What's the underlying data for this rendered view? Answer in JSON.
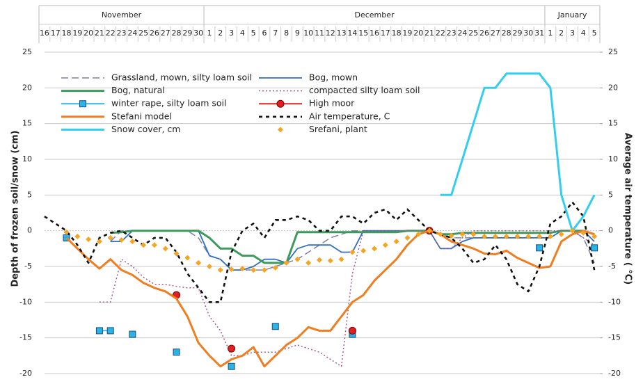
{
  "chart_data": {
    "type": "line",
    "months": [
      "November",
      "December",
      "January"
    ],
    "categories": [
      16,
      17,
      18,
      19,
      20,
      21,
      22,
      23,
      24,
      25,
      26,
      27,
      28,
      29,
      30,
      1,
      2,
      3,
      4,
      5,
      6,
      7,
      8,
      9,
      10,
      11,
      12,
      13,
      14,
      15,
      16,
      17,
      18,
      19,
      20,
      21,
      22,
      23,
      24,
      25,
      26,
      27,
      28,
      29,
      30,
      31,
      1,
      2,
      3,
      4,
      5
    ],
    "y_label": "Depth of frozen soil/snow (cm)",
    "y2_label": "Average air temperature ( °C)",
    "ylim": [
      -20,
      25
    ],
    "yticks": [
      25,
      20,
      15,
      10,
      5,
      0,
      -5,
      -10,
      -15,
      -20
    ],
    "y2lim": [
      -20,
      25
    ],
    "y2ticks": [
      25,
      20,
      15,
      10,
      5,
      0,
      -5,
      -10,
      -15,
      -20
    ],
    "grid": true,
    "series": [
      {
        "name": "Grassland, mown, silty loam soil",
        "color": "#7b7fa6",
        "line_style": "dashed",
        "marker": "none",
        "values": [
          null,
          null,
          null,
          null,
          null,
          null,
          -1.5,
          0,
          0,
          0,
          0,
          0,
          0,
          0,
          -1,
          -3.5,
          -4,
          -5.5,
          -5.5,
          -5.5,
          -5.5,
          -5,
          -4.5,
          -4,
          -3,
          -2,
          -1,
          -0.5,
          0,
          0,
          0,
          0,
          0,
          0,
          0,
          0,
          -0.5,
          -1,
          -1,
          -1,
          -1,
          -1,
          -1,
          -1,
          -1,
          -1,
          -1,
          0,
          0,
          -1,
          -4.5
        ]
      },
      {
        "name": "Bog, mown",
        "color": "#2f6fbf",
        "line_style": "solid",
        "marker": "none",
        "values": [
          null,
          null,
          null,
          null,
          null,
          null,
          -1.5,
          -1.5,
          0,
          0,
          0,
          0,
          0,
          0,
          0,
          -3.5,
          -4,
          -5.5,
          -5.5,
          -5,
          -4,
          -4,
          -4.5,
          -2.5,
          -2,
          -2,
          -2,
          -3,
          -3,
          0,
          0,
          0,
          0,
          0,
          0,
          0,
          -2.5,
          -2.5,
          -1.5,
          -1,
          -1,
          -1,
          -1,
          -1,
          -1,
          -1,
          -1,
          0,
          0,
          0,
          -1.5
        ]
      },
      {
        "name": "Bog, natural",
        "color": "#3d9a5c",
        "line_style": "thick",
        "marker": "none",
        "values": [
          null,
          null,
          null,
          null,
          null,
          null,
          -0.3,
          -0.2,
          0,
          0,
          0,
          0,
          0,
          0,
          0,
          -1,
          -2.5,
          -2.5,
          -3.5,
          -3.5,
          -4.5,
          -4.5,
          -4.5,
          -0.2,
          -0.2,
          -0.2,
          -0.2,
          -0.2,
          -0.2,
          -0.2,
          -0.2,
          -0.2,
          -0.2,
          0,
          0,
          0,
          -0.5,
          -0.5,
          -0.3,
          -0.3,
          -0.3,
          -0.3,
          -0.3,
          -0.3,
          -0.3,
          -0.3,
          -0.3,
          0,
          0,
          0,
          -0.5
        ]
      },
      {
        "name": "compacted silty loam soil",
        "color": "#a05a8e",
        "line_style": "dotted",
        "marker": "none",
        "values": [
          null,
          null,
          null,
          null,
          null,
          -10,
          -10,
          -4,
          -5,
          -6.5,
          -7.5,
          -7.5,
          -7.8,
          -8,
          -8,
          -12,
          -14,
          -17.5,
          -17.5,
          -17,
          -17,
          -17,
          -16.5,
          -16,
          -16.5,
          -17,
          -18,
          -19,
          -6,
          0,
          0,
          0,
          0,
          0,
          0,
          0,
          -2.5,
          -2.5,
          -1,
          0,
          0,
          0,
          0,
          0,
          0,
          0,
          0,
          0,
          0,
          -1,
          -2
        ]
      },
      {
        "name": "winter rape, silty loam soil",
        "color": "#2ab3e6",
        "line_style": "solid",
        "marker": "square",
        "values": [
          null,
          null,
          -1,
          null,
          null,
          -14,
          -14,
          null,
          -14.5,
          null,
          null,
          null,
          -17,
          null,
          null,
          null,
          null,
          -19,
          null,
          null,
          null,
          -13.4,
          null,
          null,
          null,
          null,
          null,
          null,
          -14.5,
          null,
          null,
          null,
          null,
          null,
          null,
          null,
          null,
          null,
          null,
          null,
          null,
          null,
          null,
          null,
          null,
          -2.4,
          null,
          null,
          null,
          null,
          -2.4
        ]
      },
      {
        "name": "High moor",
        "color": "#e01f1f",
        "line_style": "solid",
        "marker": "circle",
        "values": [
          null,
          null,
          null,
          null,
          null,
          null,
          null,
          null,
          null,
          null,
          null,
          null,
          -9,
          null,
          null,
          null,
          null,
          -16.5,
          null,
          null,
          null,
          null,
          null,
          null,
          null,
          null,
          null,
          null,
          -14,
          null,
          null,
          null,
          null,
          null,
          null,
          0,
          null,
          null,
          null,
          null,
          null,
          null,
          null,
          null,
          null,
          null,
          null,
          null,
          null,
          null,
          null
        ]
      },
      {
        "name": "Stefani model",
        "color": "#f07d1e",
        "line_style": "thick",
        "marker": "none",
        "values": [
          null,
          null,
          -1,
          -2.5,
          -4,
          -5.3,
          -4,
          -5.5,
          -6.2,
          -7.3,
          -8,
          -8.5,
          -9.5,
          -12,
          -15.7,
          -17.5,
          -19,
          -18,
          -17.5,
          -16.3,
          -19,
          -17.5,
          -16,
          -15,
          -13.5,
          -14,
          -14,
          -12,
          -10,
          -9,
          -7,
          -5.5,
          -4,
          -2,
          -0.5,
          0,
          -0.5,
          -1.5,
          -2,
          -2.5,
          -3.2,
          -3.3,
          -2.8,
          -3.8,
          -4.5,
          -5.2,
          -5,
          -1.5,
          -0.5,
          0,
          -0.5
        ]
      },
      {
        "name": "Air temperature, C",
        "color": "#111111",
        "line_style": "bold-dashed",
        "marker": "none",
        "axis": "y2",
        "values": [
          2,
          1,
          0,
          -2,
          -4.5,
          -1,
          -0.3,
          0,
          -1,
          -2,
          -1,
          -1,
          -3,
          -6,
          -8,
          -10,
          -10,
          -3,
          0,
          1,
          -1,
          1.5,
          1.5,
          2,
          1.5,
          0,
          0,
          2,
          2,
          1,
          2.5,
          3,
          1.5,
          3,
          1.5,
          0,
          -0.5,
          -1,
          -2.5,
          -4.5,
          -4,
          -2,
          -4,
          -7.5,
          -8.5,
          -5,
          1,
          2,
          4,
          2,
          -5.5
        ]
      },
      {
        "name": "Snow cover, cm",
        "color": "#33cdf0",
        "line_style": "thick",
        "marker": "none",
        "values": [
          null,
          null,
          null,
          null,
          null,
          null,
          null,
          null,
          null,
          null,
          null,
          null,
          null,
          null,
          null,
          null,
          null,
          null,
          null,
          null,
          null,
          null,
          null,
          null,
          null,
          null,
          null,
          null,
          null,
          null,
          null,
          null,
          null,
          null,
          null,
          null,
          5,
          5,
          10,
          15,
          20,
          20,
          22,
          22,
          22,
          22,
          20,
          5,
          0,
          2,
          5
        ]
      },
      {
        "name": "Srefani, plant",
        "color": "#f5a524",
        "line_style": "none",
        "marker": "diamond",
        "values": [
          null,
          null,
          -0.2,
          -0.8,
          -1.2,
          -1.5,
          -1,
          -1.3,
          -1.5,
          -2,
          -2,
          -2.5,
          -3.2,
          -3.8,
          -4.5,
          -5,
          -5.5,
          -5.4,
          -5.3,
          -5.5,
          -5.5,
          -5.2,
          -4.5,
          -4,
          -4.5,
          -4.1,
          -4.2,
          -4,
          -3,
          -2.8,
          -2.5,
          -2,
          -1.5,
          -1,
          -0.5,
          0,
          -0.5,
          -0.7,
          -0.5,
          -0.5,
          -0.8,
          -0.8,
          -0.8,
          -0.8,
          -0.8,
          -0.8,
          -0.8,
          -0.5,
          0,
          -0.3,
          -0.8
        ]
      }
    ]
  }
}
